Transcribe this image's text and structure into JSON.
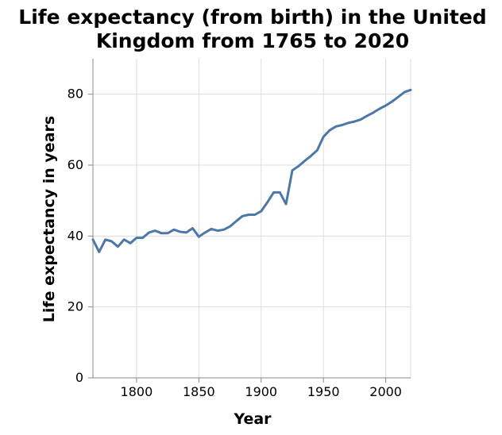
{
  "chart_data": {
    "type": "line",
    "title_lines": [
      "Life expectancy (from birth) in the United",
      "Kingdom from 1765 to 2020"
    ],
    "xlabel": "Year",
    "ylabel": "Life expectancy in years",
    "xlim": [
      1765,
      2020
    ],
    "ylim": [
      0,
      90
    ],
    "x_ticks": [
      1800,
      1850,
      1900,
      1950,
      2000
    ],
    "y_ticks": [
      0,
      20,
      40,
      60,
      80
    ],
    "grid": true,
    "line_color": "#4c78a8",
    "series": [
      {
        "x": [
          1765,
          1770,
          1775,
          1780,
          1785,
          1790,
          1795,
          1800,
          1805,
          1810,
          1815,
          1820,
          1825,
          1830,
          1835,
          1840,
          1845,
          1850,
          1855,
          1860,
          1865,
          1870,
          1875,
          1880,
          1885,
          1890,
          1895,
          1900,
          1905,
          1910,
          1915,
          1920,
          1925,
          1930,
          1935,
          1940,
          1945,
          1950,
          1955,
          1960,
          1965,
          1970,
          1975,
          1980,
          1985,
          1990,
          1995,
          2000,
          2005,
          2010,
          2015,
          2020
        ],
        "y": [
          39,
          35.5,
          39,
          38.5,
          37,
          39,
          38,
          39.5,
          39.5,
          41,
          41.5,
          40.8,
          40.8,
          41.8,
          41.2,
          41,
          42.2,
          39.8,
          41,
          42,
          41.5,
          41.8,
          42.7,
          44.2,
          45.6,
          46,
          46,
          47,
          49.5,
          52.3,
          52.3,
          49,
          58.5,
          59.7,
          61.2,
          62.6,
          64.2,
          68,
          69.8,
          70.9,
          71.3,
          71.9,
          72.3,
          72.9,
          73.9,
          74.8,
          75.9,
          76.8,
          77.9,
          79.2,
          80.6,
          81.2
        ]
      }
    ]
  }
}
